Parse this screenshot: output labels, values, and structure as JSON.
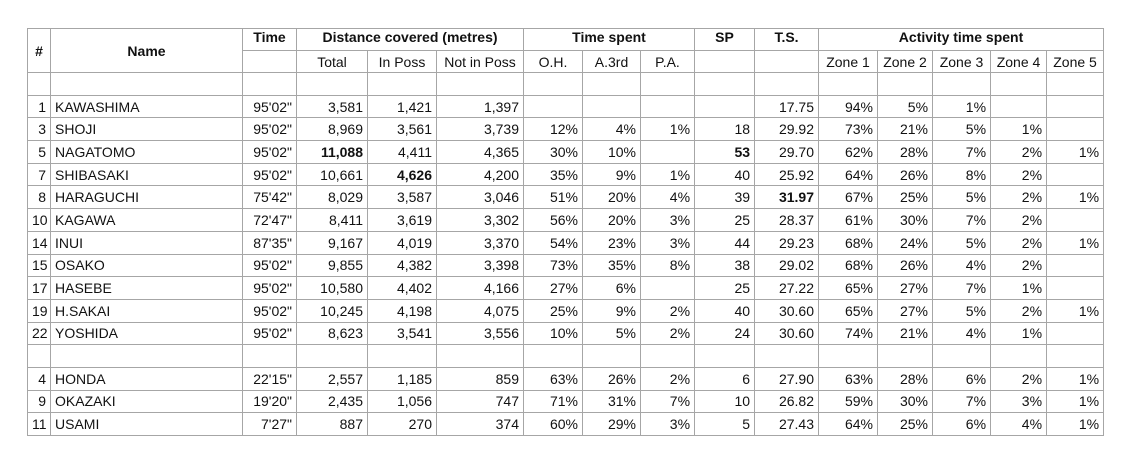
{
  "table": {
    "columns": [
      {
        "label": "#"
      },
      {
        "label": "Name"
      },
      {
        "label": "Time"
      },
      {
        "label": "Distance covered (metres)",
        "subs": [
          "Total",
          "In Poss",
          "Not in Poss"
        ]
      },
      {
        "label": "Time spent",
        "subs": [
          "O.H.",
          "A.3rd",
          "P.A."
        ]
      },
      {
        "label": "SP"
      },
      {
        "label": "T.S."
      },
      {
        "label": "Activity time spent",
        "subs": [
          "Zone 1",
          "Zone 2",
          "Zone 3",
          "Zone 4",
          "Zone 5"
        ]
      }
    ],
    "groups": [
      [
        [
          "1",
          "KAWASHIMA",
          "95'02\"",
          "3,581",
          "1,421",
          "1,397",
          null,
          null,
          null,
          null,
          "17.75",
          "94%",
          "5%",
          "1%",
          null,
          null
        ],
        [
          "3",
          "SHOJI",
          "95'02\"",
          "8,969",
          "3,561",
          "3,739",
          "12%",
          "4%",
          "1%",
          "18",
          "29.92",
          "73%",
          "21%",
          "5%",
          "1%",
          null
        ],
        [
          "5",
          "NAGATOMO",
          "95'02\"",
          {
            "text": "11,088",
            "bold": true
          },
          "4,411",
          "4,365",
          "30%",
          "10%",
          null,
          {
            "text": "53",
            "bold": true
          },
          "29.70",
          "62%",
          "28%",
          "7%",
          "2%",
          "1%"
        ],
        [
          "7",
          "SHIBASAKI",
          "95'02\"",
          "10,661",
          {
            "text": "4,626",
            "bold": true
          },
          "4,200",
          "35%",
          "9%",
          "1%",
          "40",
          "25.92",
          "64%",
          "26%",
          "8%",
          "2%",
          null
        ],
        [
          "8",
          "HARAGUCHI",
          "75'42\"",
          "8,029",
          "3,587",
          "3,046",
          "51%",
          "20%",
          "4%",
          "39",
          {
            "text": "31.97",
            "bold": true
          },
          "67%",
          "25%",
          "5%",
          "2%",
          "1%"
        ],
        [
          "10",
          "KAGAWA",
          "72'47\"",
          "8,411",
          "3,619",
          "3,302",
          "56%",
          "20%",
          "3%",
          "25",
          "28.37",
          "61%",
          "30%",
          "7%",
          "2%",
          null
        ],
        [
          "14",
          "INUI",
          "87'35\"",
          "9,167",
          "4,019",
          "3,370",
          "54%",
          "23%",
          "3%",
          "44",
          "29.23",
          "68%",
          "24%",
          "5%",
          "2%",
          "1%"
        ],
        [
          "15",
          "OSAKO",
          "95'02\"",
          "9,855",
          "4,382",
          "3,398",
          "73%",
          "35%",
          "8%",
          "38",
          "29.02",
          "68%",
          "26%",
          "4%",
          "2%",
          null
        ],
        [
          "17",
          "HASEBE",
          "95'02\"",
          "10,580",
          "4,402",
          "4,166",
          "27%",
          "6%",
          null,
          "25",
          "27.22",
          "65%",
          "27%",
          "7%",
          "1%",
          null
        ],
        [
          "19",
          "H.SAKAI",
          "95'02\"",
          "10,245",
          "4,198",
          "4,075",
          "25%",
          "9%",
          "2%",
          "40",
          "30.60",
          "65%",
          "27%",
          "5%",
          "2%",
          "1%"
        ],
        [
          "22",
          "YOSHIDA",
          "95'02\"",
          "8,623",
          "3,541",
          "3,556",
          "10%",
          "5%",
          "2%",
          "24",
          "30.60",
          "74%",
          "21%",
          "4%",
          "1%",
          null
        ]
      ],
      [
        [
          "4",
          "HONDA",
          "22'15\"",
          "2,557",
          "1,185",
          "859",
          "63%",
          "26%",
          "2%",
          "6",
          "27.90",
          "63%",
          "28%",
          "6%",
          "2%",
          "1%"
        ],
        [
          "9",
          "OKAZAKI",
          "19'20\"",
          "2,435",
          "1,056",
          "747",
          "71%",
          "31%",
          "7%",
          "10",
          "26.82",
          "59%",
          "30%",
          "7%",
          "3%",
          "1%"
        ],
        [
          "11",
          "USAMI",
          "7'27\"",
          "887",
          "270",
          "374",
          "60%",
          "29%",
          "3%",
          "5",
          "27.43",
          "64%",
          "25%",
          "6%",
          "4%",
          "1%"
        ]
      ]
    ]
  }
}
